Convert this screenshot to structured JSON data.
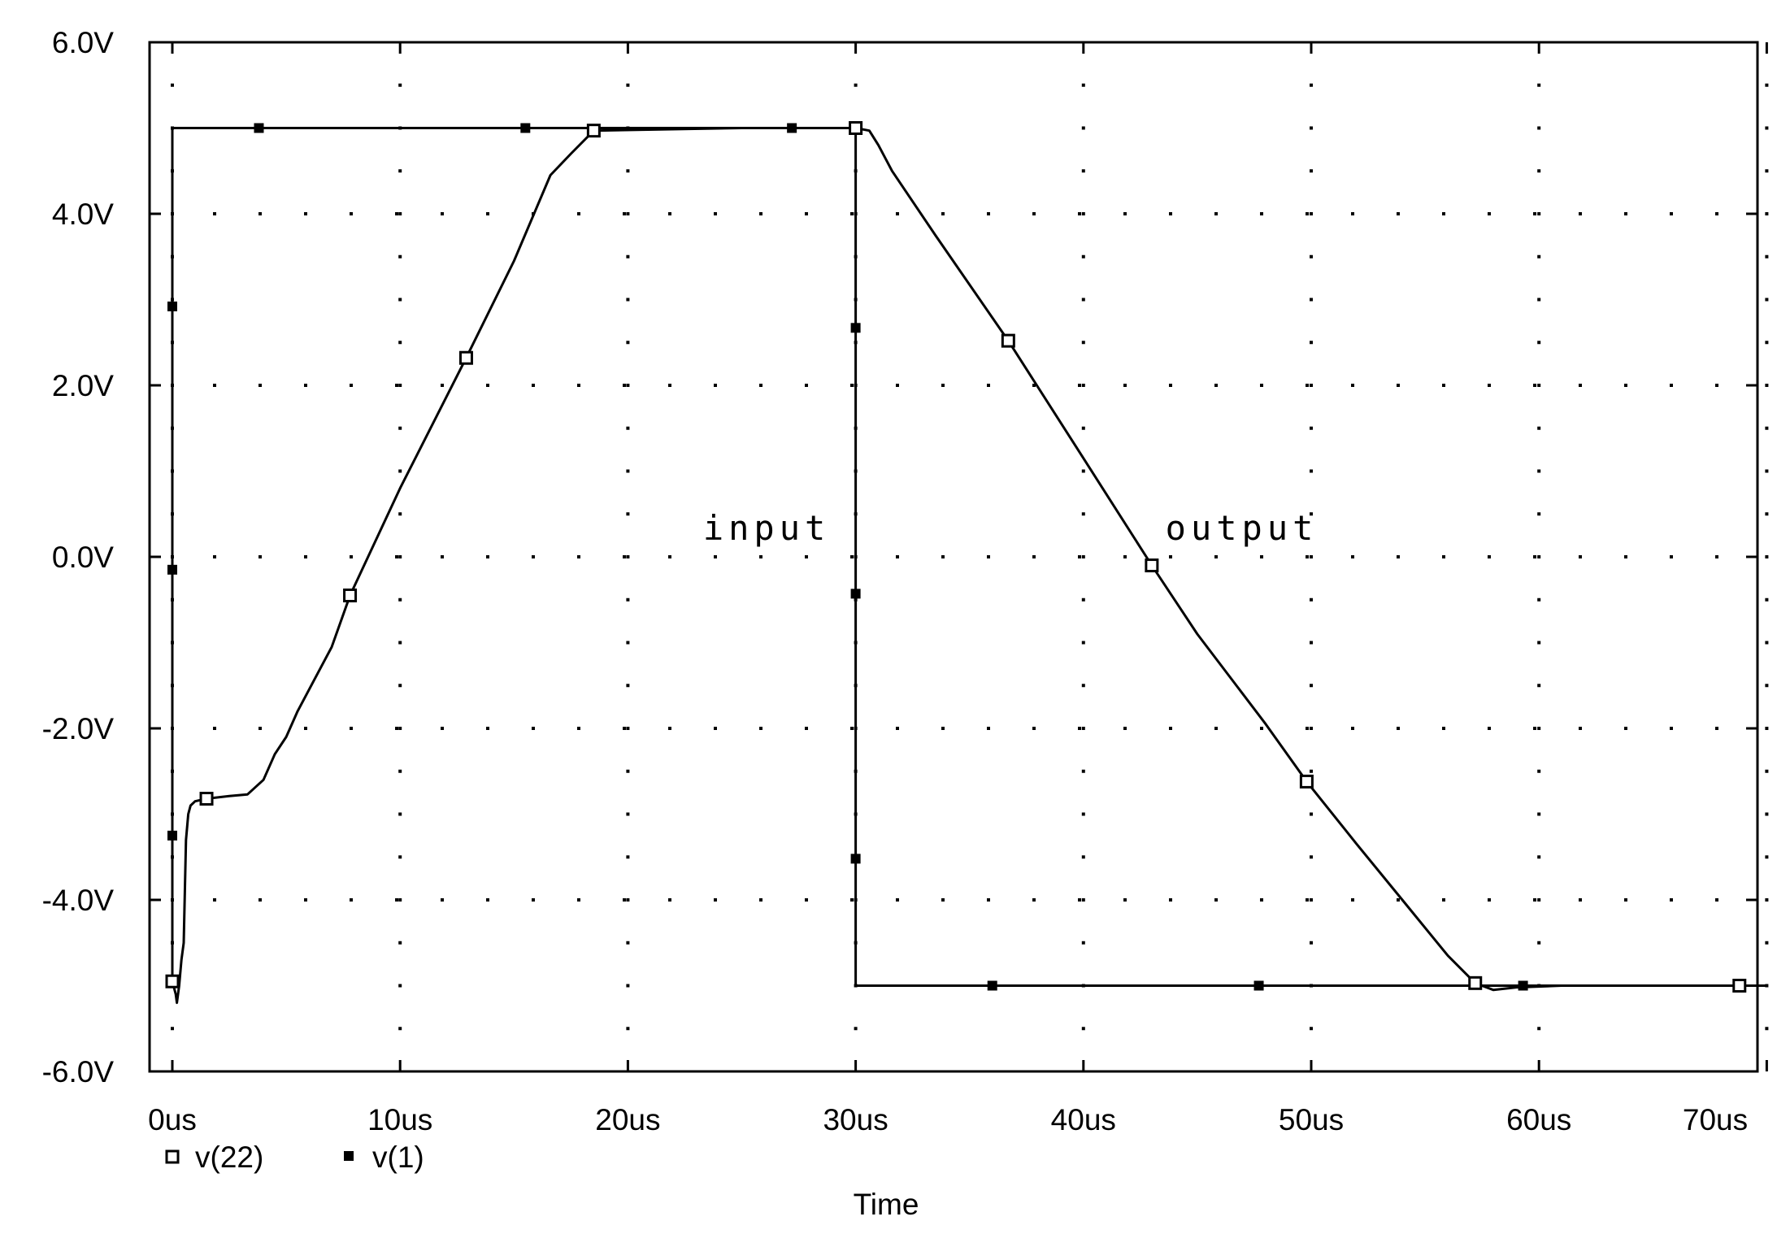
{
  "chart_data": {
    "type": "line",
    "title": "",
    "xlabel": "Time",
    "ylabel": "",
    "xlim": [
      -1,
      70
    ],
    "ylim": [
      -6,
      6
    ],
    "x_unit": "us",
    "y_unit": "V",
    "x_ticks": [
      0,
      10,
      20,
      30,
      40,
      50,
      60,
      70
    ],
    "x_tick_labels": [
      "0us",
      "10us",
      "20us",
      "30us",
      "40us",
      "50us",
      "60us",
      "70us"
    ],
    "y_ticks": [
      -6,
      -4,
      -2,
      0,
      2,
      4,
      6
    ],
    "y_tick_labels": [
      "-6.0V",
      "-4.0V",
      "-2.0V",
      "0.0V",
      "2.0V",
      "4.0V",
      "6.0V"
    ],
    "grid": "dotted",
    "legend_position": "bottom-left",
    "annotations": [
      {
        "text": "input",
        "x": 23.3,
        "y": 0.2
      },
      {
        "text": "output",
        "x": 43.6,
        "y": 0.2
      }
    ],
    "series": [
      {
        "name": "v(22)",
        "marker": "open-square",
        "color": "#000000",
        "points": [
          [
            0.0,
            -4.95
          ],
          [
            0.15,
            -5.1
          ],
          [
            0.2,
            -5.2
          ],
          [
            0.3,
            -5.0
          ],
          [
            0.4,
            -4.7
          ],
          [
            0.5,
            -4.5
          ],
          [
            0.55,
            -3.9
          ],
          [
            0.6,
            -3.3
          ],
          [
            0.7,
            -3.0
          ],
          [
            0.8,
            -2.9
          ],
          [
            1.0,
            -2.85
          ],
          [
            1.5,
            -2.82
          ],
          [
            2.5,
            -2.79
          ],
          [
            3.3,
            -2.77
          ],
          [
            4.0,
            -2.6
          ],
          [
            4.5,
            -2.3
          ],
          [
            5.0,
            -2.1
          ],
          [
            5.5,
            -1.8
          ],
          [
            7.0,
            -1.05
          ],
          [
            7.8,
            -0.45
          ],
          [
            10.0,
            0.8
          ],
          [
            12.9,
            2.32
          ],
          [
            15.0,
            3.45
          ],
          [
            16.6,
            4.45
          ],
          [
            17.5,
            4.7
          ],
          [
            18.5,
            4.97
          ],
          [
            25.0,
            5.0
          ],
          [
            30.0,
            5.0
          ],
          [
            30.6,
            4.97
          ],
          [
            31.0,
            4.8
          ],
          [
            31.6,
            4.5
          ],
          [
            33.5,
            3.75
          ],
          [
            36.7,
            2.52
          ],
          [
            40.0,
            1.15
          ],
          [
            43.0,
            -0.1
          ],
          [
            45.0,
            -0.9
          ],
          [
            48.0,
            -1.95
          ],
          [
            49.8,
            -2.62
          ],
          [
            52.0,
            -3.35
          ],
          [
            54.0,
            -4.0
          ],
          [
            56.0,
            -4.65
          ],
          [
            57.2,
            -4.97
          ],
          [
            58.0,
            -5.05
          ],
          [
            59.0,
            -5.02
          ],
          [
            61.0,
            -5.0
          ],
          [
            68.8,
            -5.0
          ],
          [
            70.0,
            -5.0
          ]
        ],
        "marker_x": [
          0.0,
          1.5,
          7.8,
          12.9,
          18.5,
          30.0,
          36.7,
          43.0,
          49.8,
          57.2,
          68.8
        ]
      },
      {
        "name": "v(1)",
        "marker": "filled-square",
        "color": "#000000",
        "points": [
          [
            0.0,
            -5.0
          ],
          [
            0.0,
            5.0
          ],
          [
            30.0,
            5.0
          ],
          [
            30.0,
            -5.0
          ],
          [
            70.0,
            -5.0
          ]
        ],
        "markers": [
          [
            0.0,
            2.92
          ],
          [
            0.0,
            -0.15
          ],
          [
            0.0,
            -3.25
          ],
          [
            3.8,
            5.0
          ],
          [
            15.5,
            5.0
          ],
          [
            27.2,
            5.0
          ],
          [
            30.0,
            2.67
          ],
          [
            30.0,
            -0.43
          ],
          [
            30.0,
            -3.52
          ],
          [
            36.0,
            -5.0
          ],
          [
            47.7,
            -5.0
          ],
          [
            59.3,
            -5.0
          ]
        ]
      }
    ]
  }
}
